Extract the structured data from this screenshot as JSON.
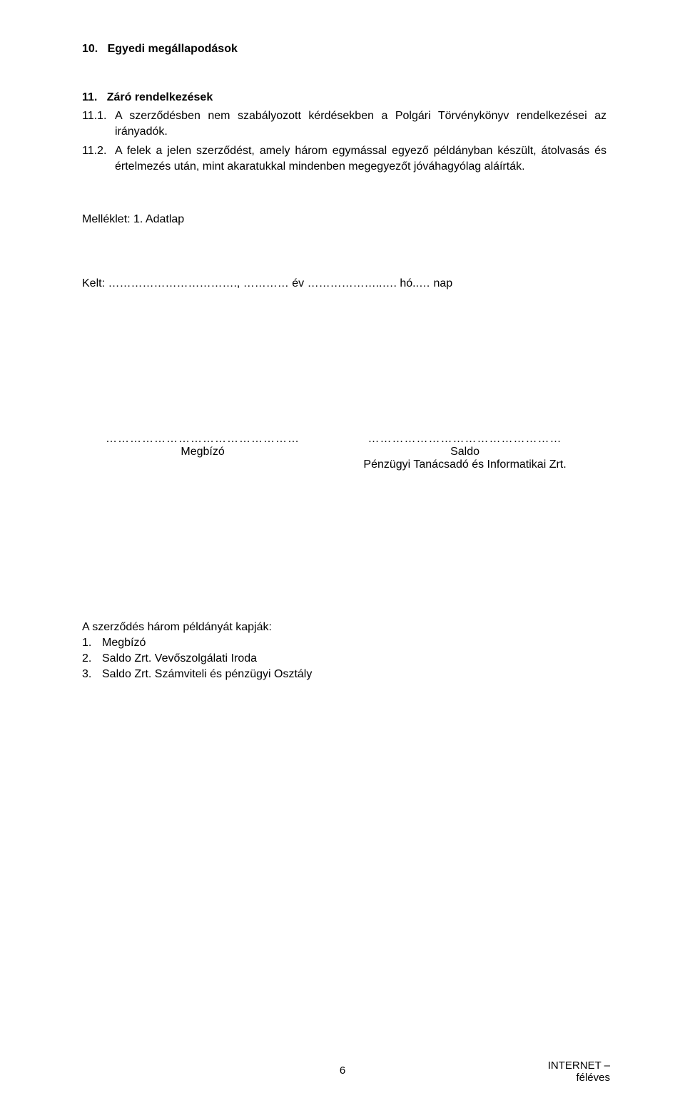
{
  "section10": {
    "number": "10.",
    "title": "Egyedi megállapodások"
  },
  "section11": {
    "number": "11.",
    "title": "Záró rendelkezések",
    "para1": {
      "num": "11.1.",
      "text": "A szerződésben nem szabályozott kérdésekben a Polgári Törvénykönyv rendelkezései az irányadók."
    },
    "para2": {
      "num": "11.2.",
      "text": "A felek a jelen szerződést, amely három egymással egyező példányban készült, átolvasás és értelmezés után, mint akaratukkal mindenben megegyezőt jóváhagyólag aláírták."
    }
  },
  "attachment": "Melléklet: 1. Adatlap",
  "dateLine": "Kelt: ……………………………., ………… év ………………..…. hó..… nap",
  "signatures": {
    "leftDots": "…………………………………………",
    "leftLabel": "Megbízó",
    "rightDots": "…………………………………………",
    "rightLabel1": "Saldo",
    "rightLabel2": "Pénzügyi Tanácsadó és Informatikai Zrt."
  },
  "distribution": {
    "heading": "A szerződés három példányát kapják:",
    "items": [
      {
        "num": "1.",
        "text": "Megbízó"
      },
      {
        "num": "2.",
        "text": "Saldo Zrt. Vevőszolgálati Iroda"
      },
      {
        "num": "3.",
        "text": "Saldo Zrt. Számviteli és pénzügyi Osztály"
      }
    ]
  },
  "footer": {
    "pageNumber": "6",
    "right1": "INTERNET –",
    "right2": "féléves"
  }
}
